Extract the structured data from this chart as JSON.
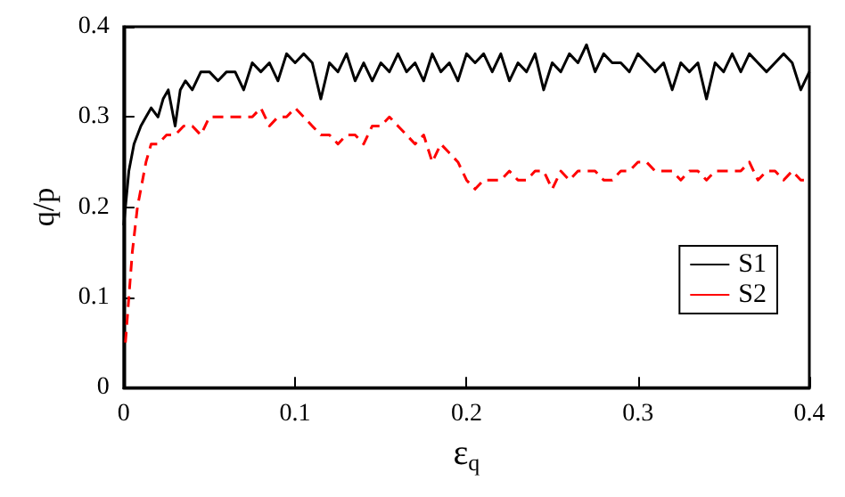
{
  "chart_data": {
    "type": "line",
    "xlabel": "ε$_{q}$",
    "ylabel": "q/p",
    "xlim": [
      0,
      0.4
    ],
    "ylim": [
      0,
      0.4
    ],
    "xticks": [
      0,
      0.1,
      0.2,
      0.3,
      0.4
    ],
    "yticks": [
      0,
      0.1,
      0.2,
      0.3,
      0.4
    ],
    "legend": "right",
    "grid": false,
    "series": [
      {
        "name": "S1",
        "color": "#000000",
        "line_style": "solid",
        "x": [
          0,
          0.003,
          0.006,
          0.01,
          0.013,
          0.016,
          0.02,
          0.023,
          0.026,
          0.03,
          0.033,
          0.036,
          0.04,
          0.045,
          0.05,
          0.055,
          0.06,
          0.065,
          0.07,
          0.075,
          0.08,
          0.085,
          0.09,
          0.095,
          0.1,
          0.105,
          0.11,
          0.115,
          0.12,
          0.125,
          0.13,
          0.135,
          0.14,
          0.145,
          0.15,
          0.155,
          0.16,
          0.165,
          0.17,
          0.175,
          0.18,
          0.185,
          0.19,
          0.195,
          0.2,
          0.205,
          0.21,
          0.215,
          0.22,
          0.225,
          0.23,
          0.235,
          0.24,
          0.245,
          0.25,
          0.255,
          0.26,
          0.265,
          0.27,
          0.275,
          0.28,
          0.285,
          0.29,
          0.295,
          0.3,
          0.305,
          0.31,
          0.315,
          0.32,
          0.325,
          0.33,
          0.335,
          0.34,
          0.345,
          0.35,
          0.355,
          0.36,
          0.365,
          0.37,
          0.375,
          0.38,
          0.385,
          0.39,
          0.395,
          0.4
        ],
        "values": [
          0.18,
          0.24,
          0.27,
          0.29,
          0.3,
          0.31,
          0.3,
          0.32,
          0.33,
          0.29,
          0.33,
          0.34,
          0.33,
          0.35,
          0.35,
          0.34,
          0.35,
          0.35,
          0.33,
          0.36,
          0.35,
          0.36,
          0.34,
          0.37,
          0.36,
          0.37,
          0.36,
          0.32,
          0.36,
          0.35,
          0.37,
          0.34,
          0.36,
          0.34,
          0.36,
          0.35,
          0.37,
          0.35,
          0.36,
          0.34,
          0.37,
          0.35,
          0.36,
          0.34,
          0.37,
          0.36,
          0.37,
          0.35,
          0.37,
          0.34,
          0.36,
          0.35,
          0.37,
          0.33,
          0.36,
          0.35,
          0.37,
          0.36,
          0.38,
          0.35,
          0.37,
          0.36,
          0.36,
          0.35,
          0.37,
          0.36,
          0.35,
          0.36,
          0.33,
          0.36,
          0.35,
          0.36,
          0.32,
          0.36,
          0.35,
          0.37,
          0.35,
          0.37,
          0.36,
          0.35,
          0.36,
          0.37,
          0.36,
          0.33,
          0.35
        ]
      },
      {
        "name": "S2",
        "color": "#ff0000",
        "line_style": "dashed",
        "x": [
          0.001,
          0.003,
          0.005,
          0.008,
          0.01,
          0.013,
          0.016,
          0.02,
          0.025,
          0.03,
          0.035,
          0.04,
          0.045,
          0.05,
          0.055,
          0.06,
          0.065,
          0.07,
          0.075,
          0.08,
          0.085,
          0.09,
          0.095,
          0.1,
          0.105,
          0.11,
          0.115,
          0.12,
          0.125,
          0.13,
          0.135,
          0.14,
          0.145,
          0.15,
          0.155,
          0.16,
          0.165,
          0.17,
          0.175,
          0.18,
          0.185,
          0.19,
          0.195,
          0.2,
          0.205,
          0.21,
          0.215,
          0.22,
          0.225,
          0.23,
          0.235,
          0.24,
          0.245,
          0.25,
          0.255,
          0.26,
          0.265,
          0.27,
          0.275,
          0.28,
          0.285,
          0.29,
          0.295,
          0.3,
          0.305,
          0.31,
          0.315,
          0.32,
          0.325,
          0.33,
          0.335,
          0.34,
          0.345,
          0.35,
          0.355,
          0.36,
          0.365,
          0.37,
          0.375,
          0.38,
          0.385,
          0.39,
          0.395,
          0.4
        ],
        "values": [
          0.05,
          0.1,
          0.15,
          0.2,
          0.22,
          0.25,
          0.27,
          0.27,
          0.28,
          0.28,
          0.29,
          0.29,
          0.28,
          0.3,
          0.3,
          0.3,
          0.3,
          0.3,
          0.3,
          0.31,
          0.29,
          0.3,
          0.3,
          0.31,
          0.3,
          0.29,
          0.28,
          0.28,
          0.27,
          0.28,
          0.28,
          0.27,
          0.29,
          0.29,
          0.3,
          0.29,
          0.28,
          0.27,
          0.28,
          0.25,
          0.27,
          0.26,
          0.25,
          0.23,
          0.22,
          0.23,
          0.23,
          0.23,
          0.24,
          0.23,
          0.23,
          0.24,
          0.24,
          0.22,
          0.24,
          0.23,
          0.24,
          0.24,
          0.24,
          0.23,
          0.23,
          0.24,
          0.24,
          0.25,
          0.25,
          0.24,
          0.24,
          0.24,
          0.23,
          0.24,
          0.24,
          0.23,
          0.24,
          0.24,
          0.24,
          0.24,
          0.25,
          0.23,
          0.24,
          0.24,
          0.23,
          0.24,
          0.23,
          0.23
        ]
      }
    ]
  }
}
